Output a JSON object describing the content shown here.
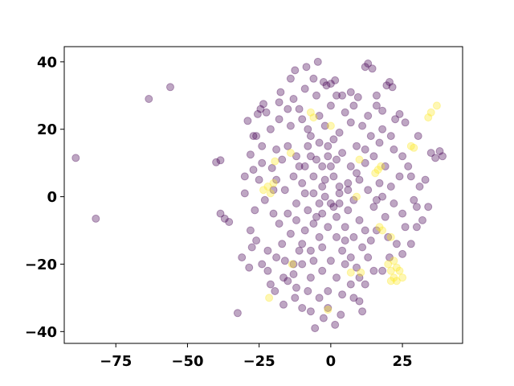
{
  "chart_data": {
    "type": "scatter",
    "title": "",
    "xlabel": "",
    "ylabel": "",
    "xlim": [
      -93,
      46
    ],
    "ylim": [
      -43.5,
      44.5
    ],
    "xticks": [
      -75,
      -50,
      -25,
      0,
      25
    ],
    "yticks": [
      -40,
      -20,
      0,
      20,
      40
    ],
    "xtick_labels": [
      "−75",
      "−50",
      "−25",
      "0",
      "25"
    ],
    "ytick_labels": [
      "−40",
      "−20",
      "0",
      "20",
      "40"
    ],
    "grid": false,
    "legend": "none",
    "marker_alpha": 0.35,
    "series": [
      {
        "color": "#440154",
        "points": [
          [
            -89,
            11.5
          ],
          [
            -82,
            -6.5
          ],
          [
            -63.5,
            29
          ],
          [
            -56,
            32.5
          ],
          [
            -40,
            10.2
          ],
          [
            -38.5,
            10.8
          ],
          [
            -38.5,
            -5
          ],
          [
            -37,
            -6.5
          ],
          [
            -35.5,
            -7.5
          ],
          [
            -32.5,
            -34.5
          ],
          [
            -31,
            -18
          ],
          [
            -30,
            6
          ],
          [
            -29,
            22.5
          ],
          [
            -28.5,
            -21
          ],
          [
            -28,
            12.5
          ],
          [
            -27.5,
            -15
          ],
          [
            -26.5,
            -4
          ],
          [
            -26,
            18
          ],
          [
            -25.5,
            24.5
          ],
          [
            -24.5,
            26
          ],
          [
            -23.5,
            27.5
          ],
          [
            -22.5,
            25
          ],
          [
            -24,
            -20
          ],
          [
            -22,
            -16
          ],
          [
            -21,
            -26
          ],
          [
            -19.5,
            -28
          ],
          [
            -20.5,
            8.5
          ],
          [
            -19,
            14
          ],
          [
            -17.5,
            31
          ],
          [
            -14,
            35
          ],
          [
            -12.5,
            37.5
          ],
          [
            -8.5,
            38.5
          ],
          [
            -4.5,
            40
          ],
          [
            -2.5,
            34
          ],
          [
            -1.5,
            33
          ],
          [
            0,
            33.5
          ],
          [
            1.5,
            34.5
          ],
          [
            4,
            30
          ],
          [
            7,
            31
          ],
          [
            9.5,
            29.5
          ],
          [
            12,
            38.5
          ],
          [
            13,
            39.5
          ],
          [
            14.5,
            38
          ],
          [
            16,
            27
          ],
          [
            18,
            25.5
          ],
          [
            19.5,
            33
          ],
          [
            20.5,
            34
          ],
          [
            21.5,
            32.5
          ],
          [
            22.5,
            23
          ],
          [
            24,
            24.5
          ],
          [
            26,
            22
          ],
          [
            30.5,
            18
          ],
          [
            33,
            5
          ],
          [
            35,
            13
          ],
          [
            36.5,
            11.5
          ],
          [
            38,
            13.5
          ],
          [
            39,
            12
          ],
          [
            34,
            -3
          ],
          [
            32,
            -7
          ],
          [
            30,
            -9
          ],
          [
            28,
            -14
          ],
          [
            25,
            -17
          ],
          [
            23,
            -14
          ],
          [
            20.5,
            -18
          ],
          [
            18,
            -22
          ],
          [
            12,
            -26
          ],
          [
            10,
            -31
          ],
          [
            11,
            -34
          ],
          [
            8,
            -30
          ],
          [
            3.5,
            -35
          ],
          [
            1.5,
            -38
          ],
          [
            -2.5,
            -36
          ],
          [
            -5.5,
            -39
          ],
          [
            -7,
            -34
          ],
          [
            -10,
            -33
          ],
          [
            -12.5,
            -30
          ],
          [
            -16.5,
            -32
          ],
          [
            -16.5,
            -24
          ],
          [
            -13,
            -20
          ],
          [
            -10,
            -14
          ],
          [
            -6,
            -8
          ],
          [
            -3,
            -5
          ],
          [
            0,
            -2
          ],
          [
            3,
            1
          ],
          [
            6,
            4
          ],
          [
            9,
            7
          ],
          [
            12,
            10
          ],
          [
            15,
            12
          ],
          [
            -15,
            15
          ],
          [
            -12,
            12
          ],
          [
            -9,
            9
          ],
          [
            -6,
            6
          ],
          [
            -3,
            3
          ],
          [
            2,
            -6
          ],
          [
            5,
            -9
          ],
          [
            8,
            -12
          ],
          [
            11,
            -15
          ],
          [
            -18,
            -8
          ],
          [
            -15,
            -5
          ],
          [
            -12,
            -2
          ],
          [
            -9,
            1
          ],
          [
            -5,
            11
          ],
          [
            -1,
            15
          ],
          [
            3,
            19
          ],
          [
            7,
            22
          ],
          [
            -8,
            20
          ],
          [
            -4,
            24
          ],
          [
            0,
            27
          ],
          [
            -11,
            26
          ],
          [
            15,
            -3
          ],
          [
            18,
            0
          ],
          [
            21,
            3
          ],
          [
            24,
            6
          ],
          [
            27,
            9
          ],
          [
            19,
            9
          ],
          [
            22,
            14
          ],
          [
            25,
            12
          ],
          [
            -20,
            2
          ],
          [
            -23,
            -1
          ],
          [
            -25,
            5
          ],
          [
            5,
            -20
          ],
          [
            2,
            -24
          ],
          [
            -1,
            -28
          ],
          [
            -4,
            -30
          ],
          [
            -7,
            -24
          ],
          [
            -10,
            -20
          ],
          [
            9,
            -21
          ],
          [
            13,
            -18
          ],
          [
            16,
            -10
          ],
          [
            19,
            -6
          ],
          [
            22,
            -2
          ],
          [
            25,
            -5
          ],
          [
            29,
            -1
          ],
          [
            31,
            3
          ],
          [
            28,
            6
          ],
          [
            -28,
            -10
          ],
          [
            -26,
            -13
          ],
          [
            -30,
            1
          ],
          [
            -27,
            8
          ],
          [
            -24,
            10
          ],
          [
            -21,
            20
          ],
          [
            -18,
            23
          ],
          [
            -15,
            26
          ],
          [
            -13,
            29
          ],
          [
            -9,
            32
          ],
          [
            -5,
            30
          ],
          [
            -2,
            21
          ],
          [
            1,
            17
          ],
          [
            4,
            13
          ],
          [
            7,
            9
          ],
          [
            10,
            5
          ],
          [
            13,
            2
          ],
          [
            16,
            -1
          ],
          [
            -2,
            5
          ],
          [
            -4,
            -2
          ],
          [
            -6,
            1
          ],
          [
            -8,
            -4
          ],
          [
            -10,
            4
          ],
          [
            -7,
            12
          ],
          [
            -3,
            9
          ],
          [
            1,
            6
          ],
          [
            3,
            -2
          ],
          [
            6,
            -4
          ],
          [
            -1,
            -9
          ],
          [
            -4,
            -12
          ],
          [
            -7,
            -16
          ],
          [
            2,
            -12
          ],
          [
            4,
            -16
          ],
          [
            7,
            -18
          ],
          [
            0,
            -19
          ],
          [
            -3,
            -22
          ],
          [
            -14,
            -11
          ],
          [
            -17,
            -14
          ],
          [
            -19,
            -18
          ],
          [
            -22,
            -22
          ],
          [
            -16,
            2
          ],
          [
            -13,
            6
          ],
          [
            -11,
            9
          ],
          [
            -19,
            5
          ],
          [
            -17,
            11
          ],
          [
            14,
            18
          ],
          [
            17,
            16
          ],
          [
            11,
            21
          ],
          [
            9,
            15
          ],
          [
            12,
            14
          ],
          [
            18,
            20
          ],
          [
            21,
            18
          ],
          [
            -1,
            12
          ],
          [
            -4,
            16
          ],
          [
            -7,
            18
          ],
          [
            5,
            25
          ],
          [
            8,
            27
          ],
          [
            -10,
            23
          ],
          [
            -14,
            21
          ],
          [
            10,
            -7
          ],
          [
            12,
            -10
          ],
          [
            14,
            -13
          ],
          [
            6,
            2
          ],
          [
            8,
            -1
          ],
          [
            -12,
            -7
          ],
          [
            -9,
            -10
          ],
          [
            -11,
            -16
          ],
          [
            -6,
            -19
          ],
          [
            -15,
            -25
          ],
          [
            -12,
            -27
          ],
          [
            7,
            -26
          ],
          [
            10,
            -24
          ],
          [
            15,
            -22
          ],
          [
            -2,
            0
          ],
          [
            1,
            -3
          ],
          [
            3,
            3
          ],
          [
            -5,
            -6
          ],
          [
            0,
            9
          ],
          [
            2,
            11
          ],
          [
            -3,
            -15
          ],
          [
            5,
            -13
          ],
          [
            -8,
            15
          ],
          [
            -20,
            -5
          ],
          [
            17,
            4
          ],
          [
            20,
            -12
          ],
          [
            26,
            -9
          ],
          [
            30,
            -3
          ],
          [
            -24,
            15
          ],
          [
            -27,
            18
          ],
          [
            13,
            24
          ],
          [
            16,
            30
          ],
          [
            -18,
            28
          ],
          [
            -6,
            35
          ],
          [
            2,
            30
          ],
          [
            -16,
            -19
          ],
          [
            -13,
            -23
          ],
          [
            4,
            -29
          ],
          [
            -1,
            -33
          ],
          [
            -8,
            -28
          ]
        ]
      },
      {
        "color": "#fde725",
        "points": [
          [
            -22,
            3
          ],
          [
            -21,
            1
          ],
          [
            -23.5,
            2
          ],
          [
            -20,
            4
          ],
          [
            -19.5,
            10.5
          ],
          [
            -14,
            13
          ],
          [
            -6,
            23.5
          ],
          [
            -7,
            25
          ],
          [
            0,
            21
          ],
          [
            10,
            11
          ],
          [
            9,
            0
          ],
          [
            16.5,
            8
          ],
          [
            17.5,
            9
          ],
          [
            15.5,
            7
          ],
          [
            17,
            -9
          ],
          [
            18,
            -10
          ],
          [
            21,
            -12
          ],
          [
            28,
            15
          ],
          [
            29,
            14.5
          ],
          [
            34,
            23.5
          ],
          [
            35,
            25
          ],
          [
            37,
            27
          ],
          [
            20,
            -20
          ],
          [
            21,
            -22
          ],
          [
            22,
            -24
          ],
          [
            23,
            -25
          ],
          [
            24,
            -22
          ],
          [
            23,
            -21
          ],
          [
            22,
            -19
          ],
          [
            25,
            -24
          ],
          [
            21,
            -25
          ],
          [
            -21.5,
            -30
          ],
          [
            -13.5,
            -20
          ],
          [
            -1,
            -33.5
          ],
          [
            7,
            -22.5
          ],
          [
            10.5,
            -22.5
          ]
        ]
      }
    ]
  }
}
